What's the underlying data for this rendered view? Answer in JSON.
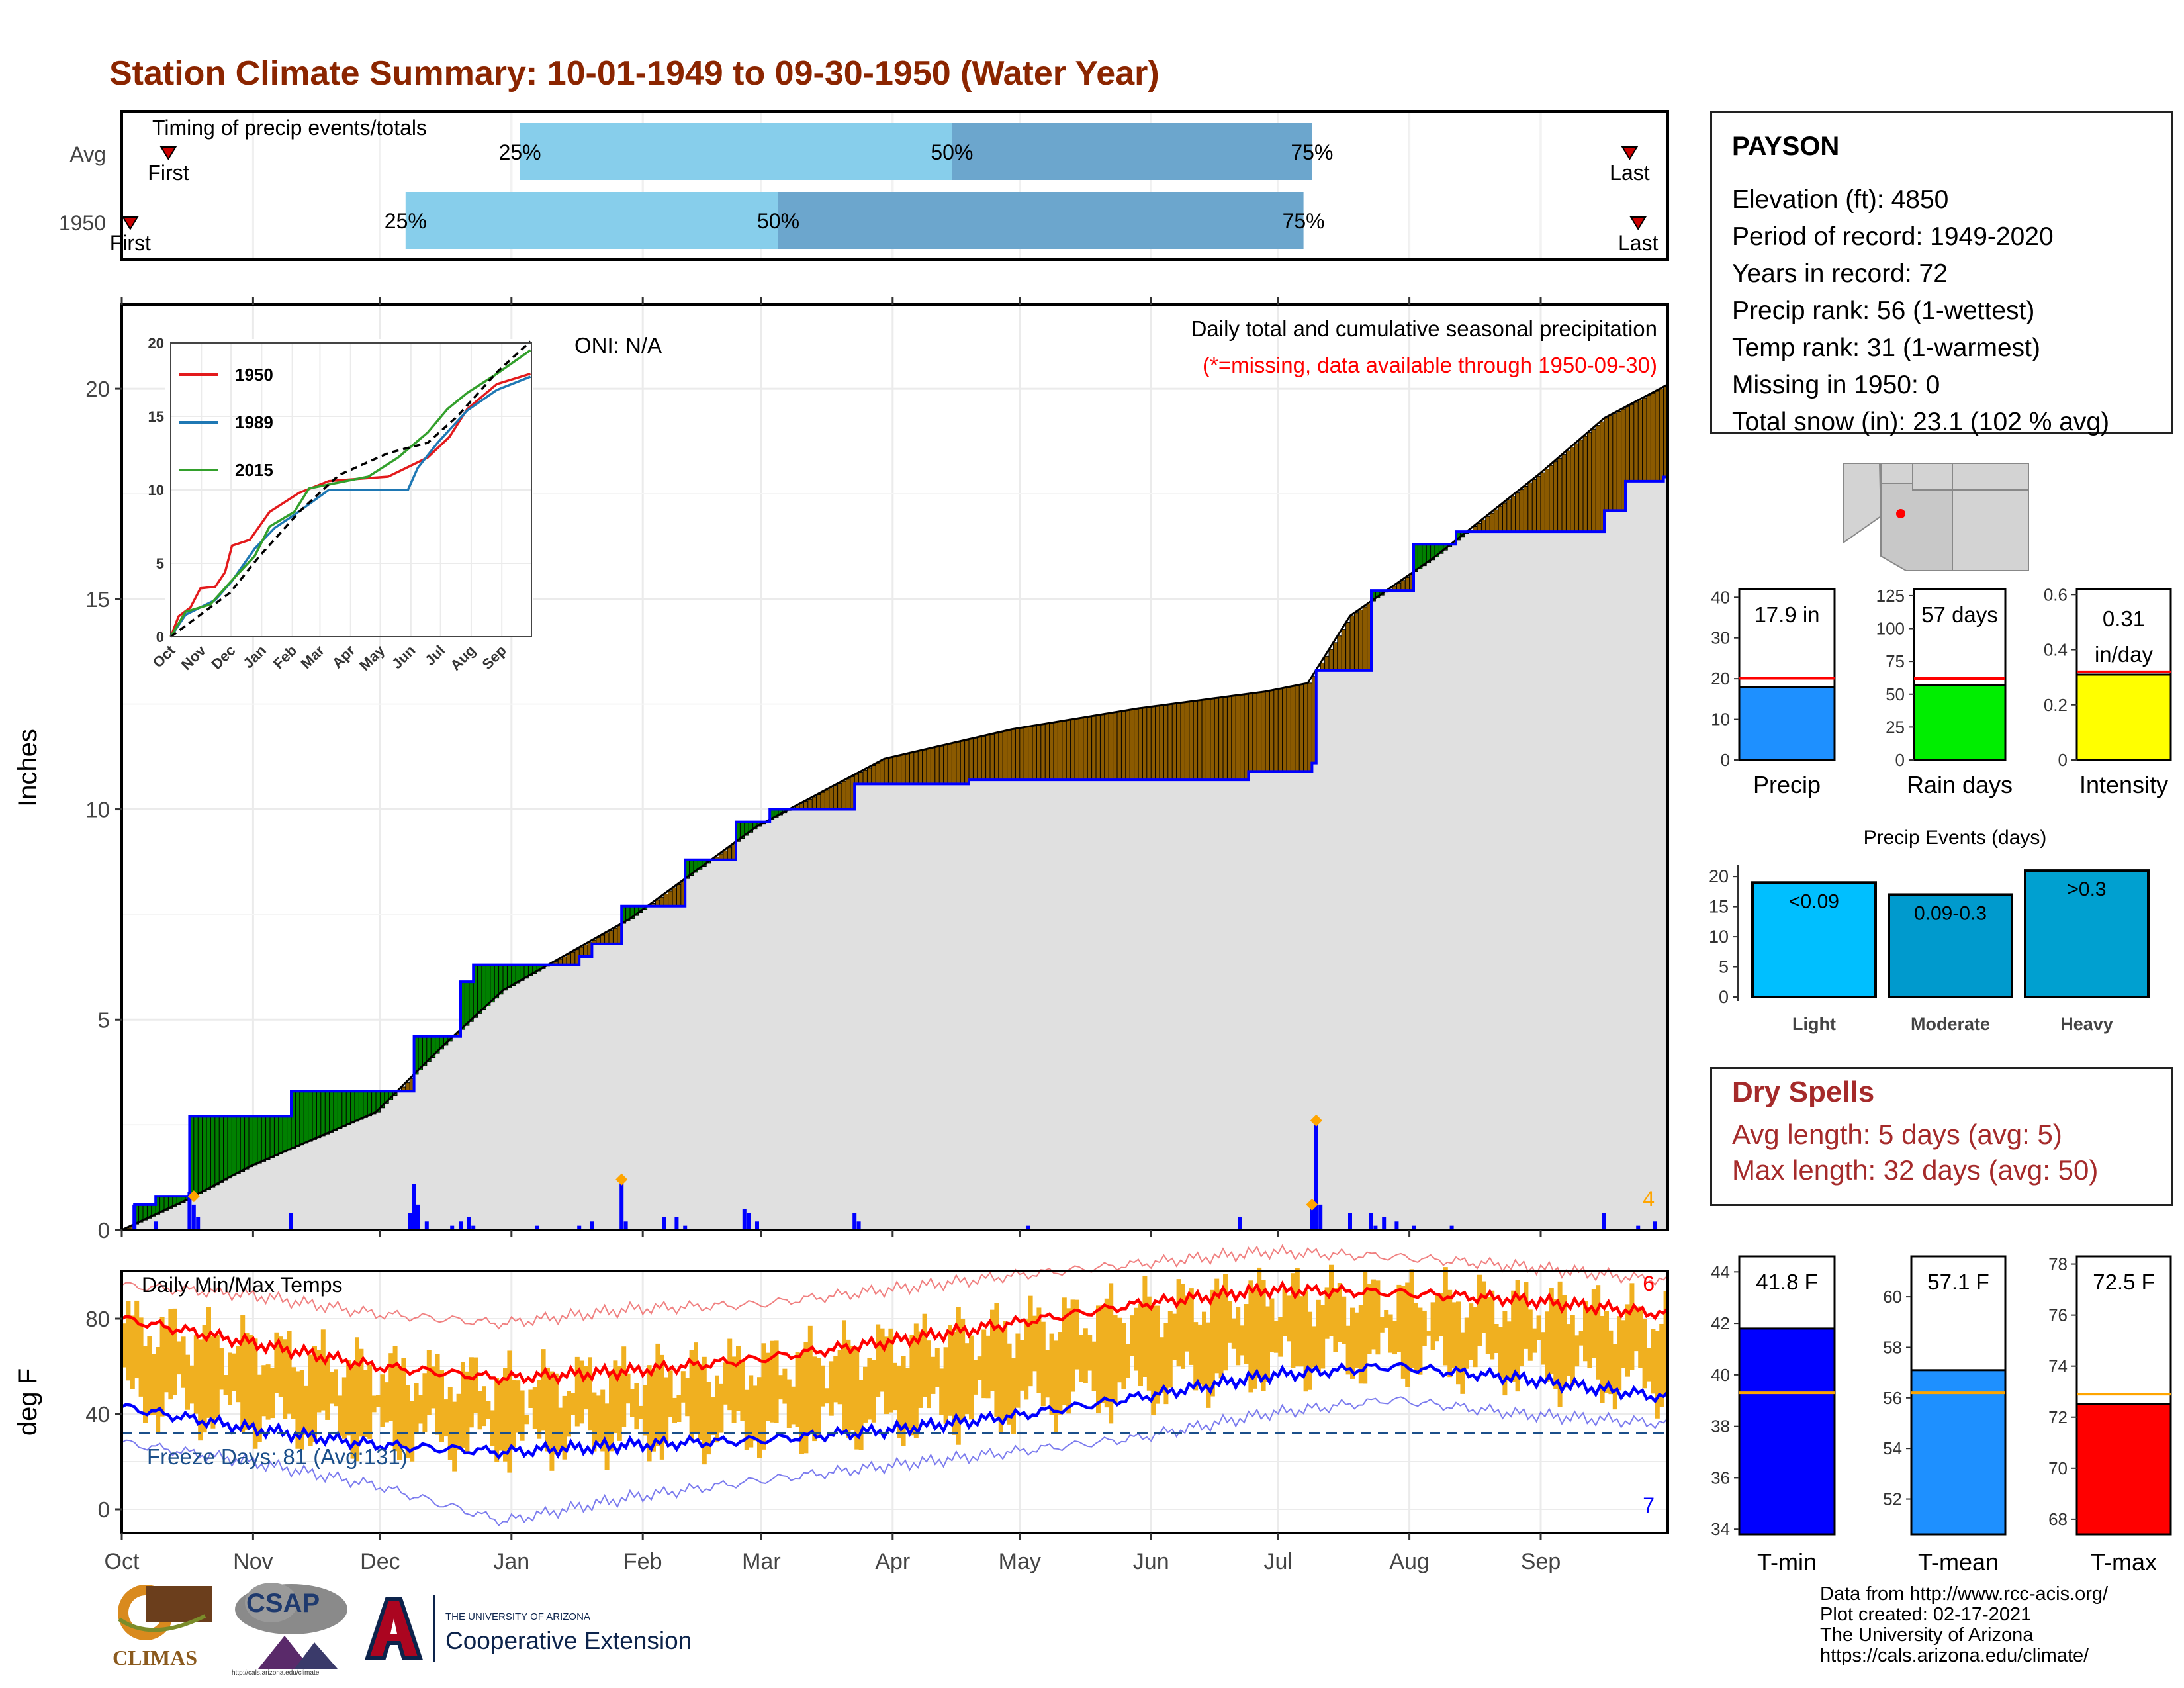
{
  "title": "Station Climate Summary: 10-01-1949 to 09-30-1950 (Water Year)",
  "months": [
    "Oct",
    "Nov",
    "Dec",
    "Jan",
    "Feb",
    "Mar",
    "Apr",
    "May",
    "Jun",
    "Jul",
    "Aug",
    "Sep"
  ],
  "station": {
    "name": "PAYSON",
    "lines": [
      "Elevation (ft): 4850",
      "Period of record: 1949-2020",
      "Years in record: 72",
      "Precip rank: 56 (1-wettest)",
      "Temp rank: 31 (1-warmest)",
      "Missing in 1950: 0",
      "Total snow (in): 23.1 (102 % avg)"
    ]
  },
  "dry_spells": {
    "title": "Dry Spells",
    "avg_line": "Avg length: 5 days (avg: 5)",
    "max_line": "Max length: 32 days (avg: 50)"
  },
  "credits": [
    "Data from http://www.rcc-acis.org/",
    "Plot created: 02-17-2021",
    "The University of Arizona",
    "https://cals.arizona.edu/climate/"
  ],
  "logos": {
    "climas": "CLIMAS",
    "csap": "CSAP",
    "csap_url": "http://cals.arizona.edu/climate",
    "ua_small": "THE UNIVERSITY OF ARIZONA",
    "ua_big": "Cooperative Extension"
  },
  "colors": {
    "title": "#8B2500",
    "above_avg": "#008000",
    "below_avg": "#8B5A00",
    "cum_avg_fill": "#E0E0E0",
    "precip_line": "#0000FF",
    "temp_bar": "#F0B020",
    "tmax_avg": "#FF0000",
    "tmin_avg": "#0000FF"
  },
  "chart_data": [
    {
      "id": "timing",
      "type": "bar",
      "title": "Timing of precip events/totals",
      "rows": [
        {
          "label": "Avg",
          "first": "Oct 12",
          "q25": "Jan 3",
          "q50": "Apr 15",
          "q75": "Jul 9",
          "last": "Sep 22",
          "first_label": "First",
          "last_label": "Last"
        },
        {
          "label": "1950",
          "first": "Oct 3",
          "q25": "Dec 7",
          "q50": "Mar 5",
          "q75": "Jul 7",
          "last": "Sep 24",
          "first_label": "First",
          "last_label": "Last"
        }
      ],
      "pct_labels": [
        "25%",
        "50%",
        "75%"
      ]
    },
    {
      "id": "precip",
      "type": "area",
      "title": "Daily total and cumulative seasonal precipitation",
      "subtitle": "(*=missing, data available through 1950-09-30)",
      "annotation": "ONI: N/A",
      "ylabel": "Inches",
      "ylim": [
        0,
        22
      ],
      "yticks": [
        0,
        5,
        10,
        15,
        20
      ],
      "corner_count": "4",
      "cumulative_1950": [
        [
          0,
          0
        ],
        [
          3,
          0.6
        ],
        [
          8,
          0.8
        ],
        [
          16,
          2.7
        ],
        [
          38,
          2.7
        ],
        [
          40,
          3.3
        ],
        [
          68,
          3.3
        ],
        [
          69,
          4.6
        ],
        [
          80,
          5.9
        ],
        [
          83,
          6.3
        ],
        [
          98,
          6.3
        ],
        [
          108,
          6.5
        ],
        [
          111,
          6.8
        ],
        [
          118,
          7.7
        ],
        [
          133,
          8.8
        ],
        [
          145,
          9.7
        ],
        [
          153,
          10
        ],
        [
          167,
          10
        ],
        [
          173,
          10.6
        ],
        [
          200,
          10.7
        ],
        [
          239,
          10.7
        ],
        [
          266,
          10.9
        ],
        [
          281,
          11.1
        ],
        [
          282,
          13.3
        ],
        [
          295,
          15.2
        ],
        [
          305,
          16.3
        ],
        [
          315,
          16.6
        ],
        [
          325,
          16.6
        ],
        [
          350,
          17.1
        ],
        [
          355,
          17.8
        ],
        [
          364,
          17.9
        ]
      ],
      "cumulative_avg": [
        [
          0,
          0
        ],
        [
          15,
          0.7
        ],
        [
          30,
          1.5
        ],
        [
          60,
          2.8
        ],
        [
          75,
          4.3
        ],
        [
          90,
          5.7
        ],
        [
          120,
          7.4
        ],
        [
          150,
          9.6
        ],
        [
          180,
          11.2
        ],
        [
          210,
          11.9
        ],
        [
          240,
          12.4
        ],
        [
          270,
          12.8
        ],
        [
          280,
          13.0
        ],
        [
          290,
          14.6
        ],
        [
          310,
          16.0
        ],
        [
          320,
          16.8
        ],
        [
          335,
          18.0
        ],
        [
          350,
          19.3
        ],
        [
          365,
          20.1
        ]
      ],
      "daily_events": [
        [
          3,
          0.6
        ],
        [
          8,
          0.2
        ],
        [
          16,
          0.9
        ],
        [
          17,
          0.6
        ],
        [
          18,
          0.3
        ],
        [
          40,
          0.4
        ],
        [
          68,
          0.4
        ],
        [
          69,
          1.1
        ],
        [
          70,
          0.6
        ],
        [
          72,
          0.2
        ],
        [
          78,
          0.1
        ],
        [
          80,
          0.2
        ],
        [
          82,
          0.3
        ],
        [
          83,
          0.1
        ],
        [
          98,
          0.1
        ],
        [
          108,
          0.1
        ],
        [
          111,
          0.2
        ],
        [
          118,
          1.2
        ],
        [
          119,
          0.2
        ],
        [
          128,
          0.3
        ],
        [
          131,
          0.3
        ],
        [
          133,
          0.1
        ],
        [
          147,
          0.5
        ],
        [
          148,
          0.4
        ],
        [
          150,
          0.2
        ],
        [
          173,
          0.4
        ],
        [
          174,
          0.2
        ],
        [
          214,
          0.1
        ],
        [
          264,
          0.3
        ],
        [
          281,
          0.5
        ],
        [
          282,
          2.5
        ],
        [
          283,
          0.6
        ],
        [
          290,
          0.4
        ],
        [
          295,
          0.4
        ],
        [
          296,
          0.1
        ],
        [
          298,
          0.3
        ],
        [
          301,
          0.2
        ],
        [
          305,
          0.1
        ],
        [
          314,
          0.1
        ],
        [
          350,
          0.4
        ],
        [
          358,
          0.1
        ],
        [
          362,
          0.2
        ]
      ],
      "markers": [
        [
          17,
          0.8
        ],
        [
          118,
          1.2
        ],
        [
          281,
          0.6
        ],
        [
          282,
          2.6
        ]
      ]
    },
    {
      "id": "inset",
      "type": "line",
      "ylim": [
        0,
        20
      ],
      "yticks": [
        0,
        5,
        10,
        15,
        20
      ],
      "series": [
        {
          "name": "1950",
          "color": "#E31A1C",
          "values": [
            [
              0,
              0
            ],
            [
              8,
              1.4
            ],
            [
              20,
              2
            ],
            [
              30,
              3.3
            ],
            [
              45,
              3.4
            ],
            [
              55,
              4.4
            ],
            [
              62,
              6.2
            ],
            [
              80,
              6.6
            ],
            [
              100,
              8.5
            ],
            [
              130,
              9.8
            ],
            [
              160,
              10.6
            ],
            [
              220,
              10.9
            ],
            [
              260,
              12.2
            ],
            [
              282,
              13.6
            ],
            [
              300,
              15.5
            ],
            [
              330,
              17.2
            ],
            [
              364,
              17.9
            ]
          ]
        },
        {
          "name": "1989",
          "color": "#1F78B4",
          "values": [
            [
              0,
              0
            ],
            [
              15,
              1.5
            ],
            [
              45,
              2.5
            ],
            [
              62,
              3.8
            ],
            [
              85,
              6
            ],
            [
              105,
              7.4
            ],
            [
              125,
              8.3
            ],
            [
              160,
              10
            ],
            [
              240,
              10
            ],
            [
              250,
              11.5
            ],
            [
              270,
              13.2
            ],
            [
              300,
              15.4
            ],
            [
              330,
              16.8
            ],
            [
              364,
              17.7
            ]
          ]
        },
        {
          "name": "2015",
          "color": "#33A02C",
          "values": [
            [
              0,
              0
            ],
            [
              15,
              1.7
            ],
            [
              40,
              2.2
            ],
            [
              60,
              3.7
            ],
            [
              85,
              5.5
            ],
            [
              100,
              7.5
            ],
            [
              125,
              8.5
            ],
            [
              140,
              10.1
            ],
            [
              200,
              10.9
            ],
            [
              230,
              12.2
            ],
            [
              260,
              13.9
            ],
            [
              280,
              15.5
            ],
            [
              300,
              16.6
            ],
            [
              330,
              17.9
            ],
            [
              364,
              19.5
            ]
          ]
        },
        {
          "name": "Avg",
          "color": "#000000",
          "values": [
            [
              0,
              0
            ],
            [
              30,
              1.5
            ],
            [
              60,
              3
            ],
            [
              90,
              5.5
            ],
            [
              130,
              8.5
            ],
            [
              170,
              11
            ],
            [
              220,
              12.5
            ],
            [
              260,
              13.2
            ],
            [
              290,
              15
            ],
            [
              330,
              18
            ],
            [
              364,
              20.1
            ]
          ]
        }
      ]
    },
    {
      "id": "temps",
      "type": "bar",
      "title": "Daily Min/Max Temps",
      "ylabel": "deg F",
      "ylim": [
        -10,
        100
      ],
      "yticks": [
        0,
        40,
        80
      ],
      "freeze_text": "Freeze Days: 81 (Avg:131)",
      "freeze_line": 32,
      "record_high_count": "6",
      "record_low_count": "7",
      "tmax_avg": [
        [
          0,
          80
        ],
        [
          30,
          70
        ],
        [
          60,
          60
        ],
        [
          90,
          55
        ],
        [
          120,
          58
        ],
        [
          150,
          63
        ],
        [
          180,
          70
        ],
        [
          210,
          78
        ],
        [
          240,
          86
        ],
        [
          270,
          92
        ],
        [
          300,
          91
        ],
        [
          330,
          88
        ],
        [
          364,
          82
        ]
      ],
      "tmin_avg": [
        [
          0,
          43
        ],
        [
          30,
          34
        ],
        [
          60,
          27
        ],
        [
          90,
          24
        ],
        [
          120,
          27
        ],
        [
          150,
          29
        ],
        [
          180,
          33
        ],
        [
          210,
          39
        ],
        [
          240,
          47
        ],
        [
          270,
          56
        ],
        [
          300,
          60
        ],
        [
          330,
          55
        ],
        [
          364,
          47
        ]
      ],
      "tmax_record": [
        [
          0,
          94
        ],
        [
          30,
          90
        ],
        [
          60,
          82
        ],
        [
          90,
          78
        ],
        [
          120,
          84
        ],
        [
          150,
          86
        ],
        [
          180,
          92
        ],
        [
          210,
          98
        ],
        [
          240,
          103
        ],
        [
          270,
          108
        ],
        [
          300,
          106
        ],
        [
          330,
          102
        ],
        [
          364,
          96
        ]
      ],
      "tmin_record": [
        [
          0,
          28
        ],
        [
          30,
          20
        ],
        [
          60,
          10
        ],
        [
          90,
          -5
        ],
        [
          120,
          5
        ],
        [
          150,
          12
        ],
        [
          180,
          18
        ],
        [
          210,
          24
        ],
        [
          240,
          30
        ],
        [
          270,
          40
        ],
        [
          300,
          46
        ],
        [
          330,
          40
        ],
        [
          364,
          36
        ]
      ]
    },
    {
      "id": "precip_bars",
      "type": "bar",
      "categories": [
        "Precip",
        "Rain days",
        "Intensity"
      ],
      "panels": [
        {
          "label": "Precip",
          "value": 17.9,
          "avg": 20.1,
          "text": "17.9 in",
          "ylim": [
            0,
            42
          ],
          "yticks": [
            0,
            10,
            20,
            30,
            40
          ],
          "color": "#1E90FF"
        },
        {
          "label": "Rain days",
          "value": 57,
          "avg": 62,
          "text": "57 days",
          "ylim": [
            0,
            130
          ],
          "yticks": [
            0,
            25,
            50,
            75,
            100,
            125
          ],
          "color": "#00EE00"
        },
        {
          "label": "Intensity",
          "value": 0.31,
          "avg": 0.32,
          "text": "0.31",
          "text2": "in/day",
          "ylim": [
            0,
            0.62
          ],
          "yticks": [
            0.0,
            0.2,
            0.4,
            0.6
          ],
          "color": "#FFFF00"
        }
      ]
    },
    {
      "id": "precip_events",
      "type": "bar",
      "title": "Precip Events (days)",
      "categories": [
        "Light",
        "Moderate",
        "Heavy"
      ],
      "bar_labels": [
        "<0.09",
        "0.09-0.3",
        ">0.3"
      ],
      "values": [
        19,
        17,
        21
      ],
      "colors": [
        "#00BFFF",
        "#009ACD",
        "#00A0D0"
      ],
      "ylim": [
        0,
        22
      ],
      "yticks": [
        0,
        5,
        10,
        15,
        20
      ]
    },
    {
      "id": "temp_bars",
      "type": "bar",
      "categories": [
        "T-min",
        "T-mean",
        "T-max"
      ],
      "panels": [
        {
          "label": "T-min",
          "value": 41.8,
          "avg": 39.3,
          "text": "41.8 F",
          "ylim": [
            33.8,
            44.6
          ],
          "yticks": [
            34,
            36,
            38,
            40,
            42,
            44
          ],
          "color": "#0000FF"
        },
        {
          "label": "T-mean",
          "value": 57.1,
          "avg": 56.2,
          "text": "57.1 F",
          "ylim": [
            50.6,
            61.6
          ],
          "yticks": [
            52,
            54,
            56,
            58,
            60
          ],
          "color": "#1E90FF"
        },
        {
          "label": "T-max",
          "value": 72.5,
          "avg": 72.9,
          "text": "72.5 F",
          "ylim": [
            67.4,
            78.3
          ],
          "yticks": [
            68,
            70,
            72,
            74,
            76,
            78
          ],
          "color": "#FF0000"
        }
      ]
    }
  ]
}
